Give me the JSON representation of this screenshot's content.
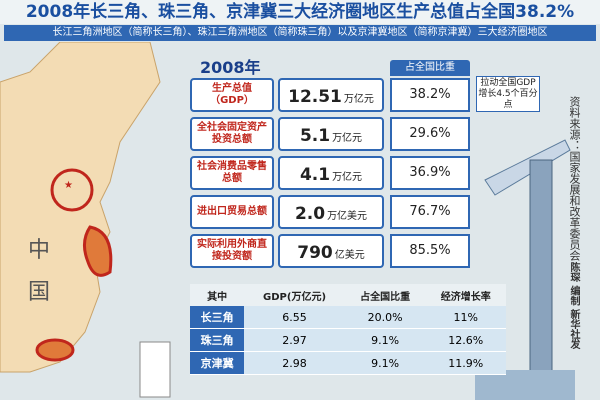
{
  "header": {
    "title": "2008年长三角、珠三角、京津冀三大经济圈地区生产总值占全国38.2%",
    "subtitle": "长江三角洲地区（简称长三角）、珠江三角洲地区（简称珠三角）以及京津冀地区（简称京津冀）三大经济圈地区"
  },
  "map": {
    "labels": [
      "中",
      "国"
    ]
  },
  "summary": {
    "year": "2008年",
    "share_header": "占全国比重",
    "rows": [
      {
        "label": "生产总值（GDP）",
        "value": "12.51",
        "unit": "万亿元",
        "share": "38.2%"
      },
      {
        "label": "全社会固定资产投资总额",
        "value": "5.1",
        "unit": "万亿元",
        "share": "29.6%"
      },
      {
        "label": "社会消费品零售总额",
        "value": "4.1",
        "unit": "万亿元",
        "share": "36.9%"
      },
      {
        "label": "进出口贸易总额",
        "value": "2.0",
        "unit": "万亿美元",
        "share": "76.7%"
      },
      {
        "label": "实际利用外商直接投资额",
        "value": "790",
        "unit": "亿美元",
        "share": "85.5%"
      }
    ],
    "note": "拉动全国GDP增长4.5个百分点"
  },
  "table": {
    "header": [
      "其中",
      "GDP(万亿元)",
      "占全国比重",
      "经济增长率"
    ],
    "rows": [
      [
        "长三角",
        "6.55",
        "20.0%",
        "11%"
      ],
      [
        "珠三角",
        "2.97",
        "9.1%",
        "12.6%"
      ],
      [
        "京津冀",
        "2.98",
        "9.1%",
        "11.9%"
      ]
    ]
  },
  "footer": {
    "source": "资料来源：国家发展和改革委员会",
    "credit": "陈琛 编制 新华社发"
  }
}
